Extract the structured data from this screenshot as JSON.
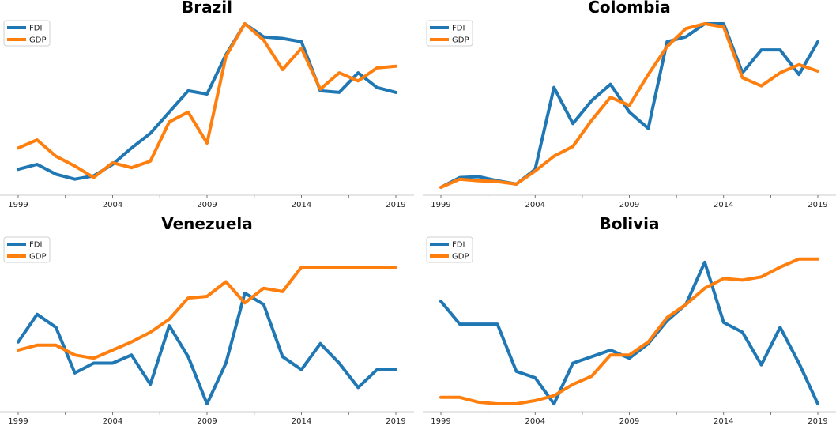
{
  "colors": {
    "FDI": "#1f77b4",
    "GDP": "#ff7f0e"
  },
  "chart_data": [
    {
      "type": "line",
      "title": "Brazil",
      "x": [
        1999,
        2000,
        2001,
        2002,
        2003,
        2004,
        2005,
        2006,
        2007,
        2008,
        2009,
        2010,
        2011,
        2012,
        2013,
        2014,
        2015,
        2016,
        2017,
        2018,
        2019
      ],
      "xticks": [
        "1999",
        "2004",
        "2009",
        "2014",
        "2019"
      ],
      "legend": "upper-left",
      "series": [
        {
          "name": "FDI",
          "values": [
            0.11,
            0.14,
            0.08,
            0.05,
            0.07,
            0.14,
            0.24,
            0.33,
            0.46,
            0.59,
            0.57,
            0.81,
            1.0,
            0.92,
            0.91,
            0.89,
            0.59,
            0.58,
            0.7,
            0.61,
            0.58
          ]
        },
        {
          "name": "GDP",
          "values": [
            0.24,
            0.29,
            0.19,
            0.13,
            0.06,
            0.15,
            0.12,
            0.16,
            0.4,
            0.46,
            0.27,
            0.8,
            1.0,
            0.9,
            0.72,
            0.85,
            0.6,
            0.7,
            0.65,
            0.73,
            0.74
          ]
        }
      ]
    },
    {
      "type": "line",
      "title": "Colombia",
      "x": [
        1999,
        2000,
        2001,
        2002,
        2003,
        2004,
        2005,
        2006,
        2007,
        2008,
        2009,
        2010,
        2011,
        2012,
        2013,
        2014,
        2015,
        2016,
        2017,
        2018,
        2019
      ],
      "xticks": [
        "1999",
        "2004",
        "2009",
        "2014",
        "2019"
      ],
      "legend": "upper-left",
      "series": [
        {
          "name": "FDI",
          "values": [
            0.0,
            0.06,
            0.065,
            0.04,
            0.02,
            0.11,
            0.61,
            0.39,
            0.53,
            0.63,
            0.46,
            0.36,
            0.89,
            0.92,
            1.0,
            1.0,
            0.7,
            0.84,
            0.84,
            0.69,
            0.89
          ]
        },
        {
          "name": "GDP",
          "values": [
            0.0,
            0.05,
            0.04,
            0.035,
            0.02,
            0.1,
            0.19,
            0.25,
            0.41,
            0.55,
            0.5,
            0.69,
            0.86,
            0.97,
            1.0,
            0.98,
            0.67,
            0.62,
            0.7,
            0.75,
            0.71
          ]
        }
      ]
    },
    {
      "type": "line",
      "title": "Venezuela",
      "x": [
        1999,
        2000,
        2001,
        2002,
        2003,
        2004,
        2005,
        2006,
        2007,
        2008,
        2009,
        2010,
        2011,
        2012,
        2013,
        2014,
        2015,
        2016,
        2017,
        2018,
        2019
      ],
      "xticks": [
        "1999",
        "2004",
        "2009",
        "2014",
        "2019"
      ],
      "legend": "upper-left",
      "series": [
        {
          "name": "FDI",
          "values": [
            0.38,
            0.55,
            0.47,
            0.19,
            0.25,
            0.25,
            0.3,
            0.12,
            0.48,
            0.29,
            0.0,
            0.25,
            0.68,
            0.61,
            0.29,
            0.21,
            0.37,
            0.25,
            0.1,
            0.21,
            0.21
          ]
        },
        {
          "name": "GDP",
          "values": [
            0.33,
            0.36,
            0.36,
            0.3,
            0.28,
            0.33,
            0.38,
            0.44,
            0.52,
            0.65,
            0.66,
            0.75,
            0.62,
            0.71,
            0.69,
            0.84,
            0.84,
            0.84,
            0.84,
            0.84,
            0.84
          ]
        }
      ]
    },
    {
      "type": "line",
      "title": "Bolivia",
      "x": [
        1999,
        2000,
        2001,
        2002,
        2003,
        2004,
        2005,
        2006,
        2007,
        2008,
        2009,
        2010,
        2011,
        2012,
        2013,
        2014,
        2015,
        2016,
        2017,
        2018,
        2019
      ],
      "xticks": [
        "1999",
        "2004",
        "2009",
        "2014",
        "2019"
      ],
      "legend": "upper-left",
      "series": [
        {
          "name": "FDI",
          "values": [
            0.63,
            0.49,
            0.49,
            0.49,
            0.2,
            0.16,
            0.0,
            0.25,
            0.29,
            0.33,
            0.28,
            0.37,
            0.51,
            0.61,
            0.87,
            0.5,
            0.44,
            0.24,
            0.47,
            0.25,
            0.0
          ]
        },
        {
          "name": "GDP",
          "values": [
            0.04,
            0.04,
            0.01,
            0.0,
            0.0,
            0.02,
            0.05,
            0.12,
            0.17,
            0.3,
            0.3,
            0.38,
            0.53,
            0.61,
            0.71,
            0.77,
            0.76,
            0.78,
            0.84,
            0.89,
            0.89
          ]
        }
      ]
    }
  ]
}
